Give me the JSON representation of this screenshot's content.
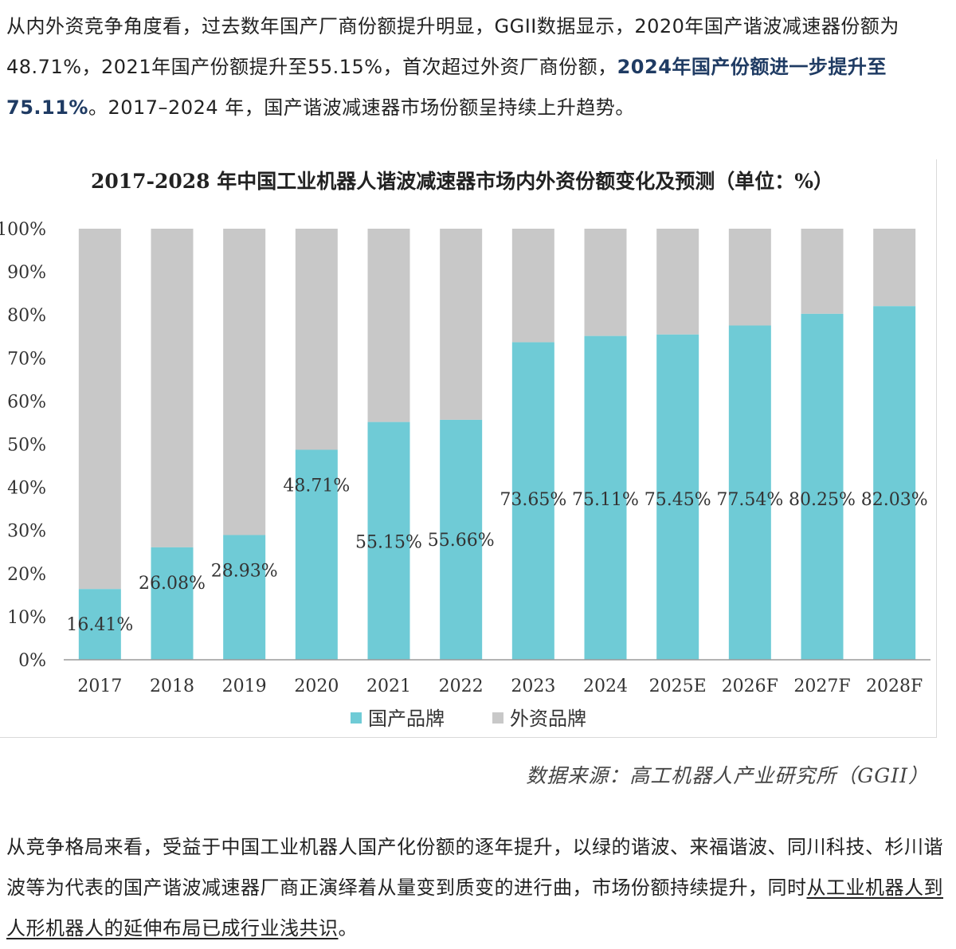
{
  "article": {
    "para1": {
      "seg1": "从内外资竞争角度看，过去数年国产厂商份额提升明显，GGII数据显示，2020年国产谐波减速器份额为48.71%，2021年国产份额提升至55.15%，首次超过外资厂商份额，",
      "highlight": "2024年国产份额进一步提升至75.11%",
      "seg2": "。2017–2024 年，国产谐波减速器市场份额呈持续上升趋势。"
    },
    "para2": {
      "seg1": "从竞争格局来看，受益于中国工业机器人国产化份额的逐年提升，以绿的谐波、来福谐波、同川科技、杉川谐波等为代表的国产谐波减速器厂商正演绎着从量变到质变的进行曲，市场份额持续提升，同时",
      "underline": "从工业机器人到人形机器人的延伸布局已成行业浅共识",
      "seg2": "。"
    }
  },
  "source": "数据来源：高工机器人产业研究所（GGII）",
  "colors": {
    "domestic": "#6fcbd6",
    "foreign": "#c8c8c8",
    "axis": "#9a9a9a",
    "text": "#333333",
    "highlight": "#1f3b63"
  },
  "chart_data": {
    "type": "bar",
    "stacked": true,
    "title": "2017-2028 年中国工业机器人谐波减速器市场内外资份额变化及预测（单位：%）",
    "categories": [
      "2017",
      "2018",
      "2019",
      "2020",
      "2021",
      "2022",
      "2023",
      "2024",
      "2025E",
      "2026F",
      "2027F",
      "2028F"
    ],
    "series": [
      {
        "name": "国产品牌",
        "values": [
          16.41,
          26.08,
          28.93,
          48.71,
          55.15,
          55.66,
          73.65,
          75.11,
          75.45,
          77.54,
          80.25,
          82.03
        ]
      },
      {
        "name": "外资品牌",
        "values": [
          83.59,
          73.92,
          71.07,
          51.29,
          44.85,
          44.34,
          26.35,
          24.89,
          24.55,
          22.46,
          19.75,
          17.97
        ]
      }
    ],
    "data_labels": [
      "16.41%",
      "26.08%",
      "28.93%",
      "48.71%",
      "55.15%",
      "55.66%",
      "73.65%",
      "75.11%",
      "75.45%",
      "77.54%",
      "80.25%",
      "82.03%"
    ],
    "yticks": [
      "0%",
      "10%",
      "20%",
      "30%",
      "40%",
      "50%",
      "60%",
      "70%",
      "80%",
      "90%",
      "100%"
    ],
    "ylim": [
      0,
      100
    ],
    "grid": false,
    "legend": "bottom-center"
  }
}
